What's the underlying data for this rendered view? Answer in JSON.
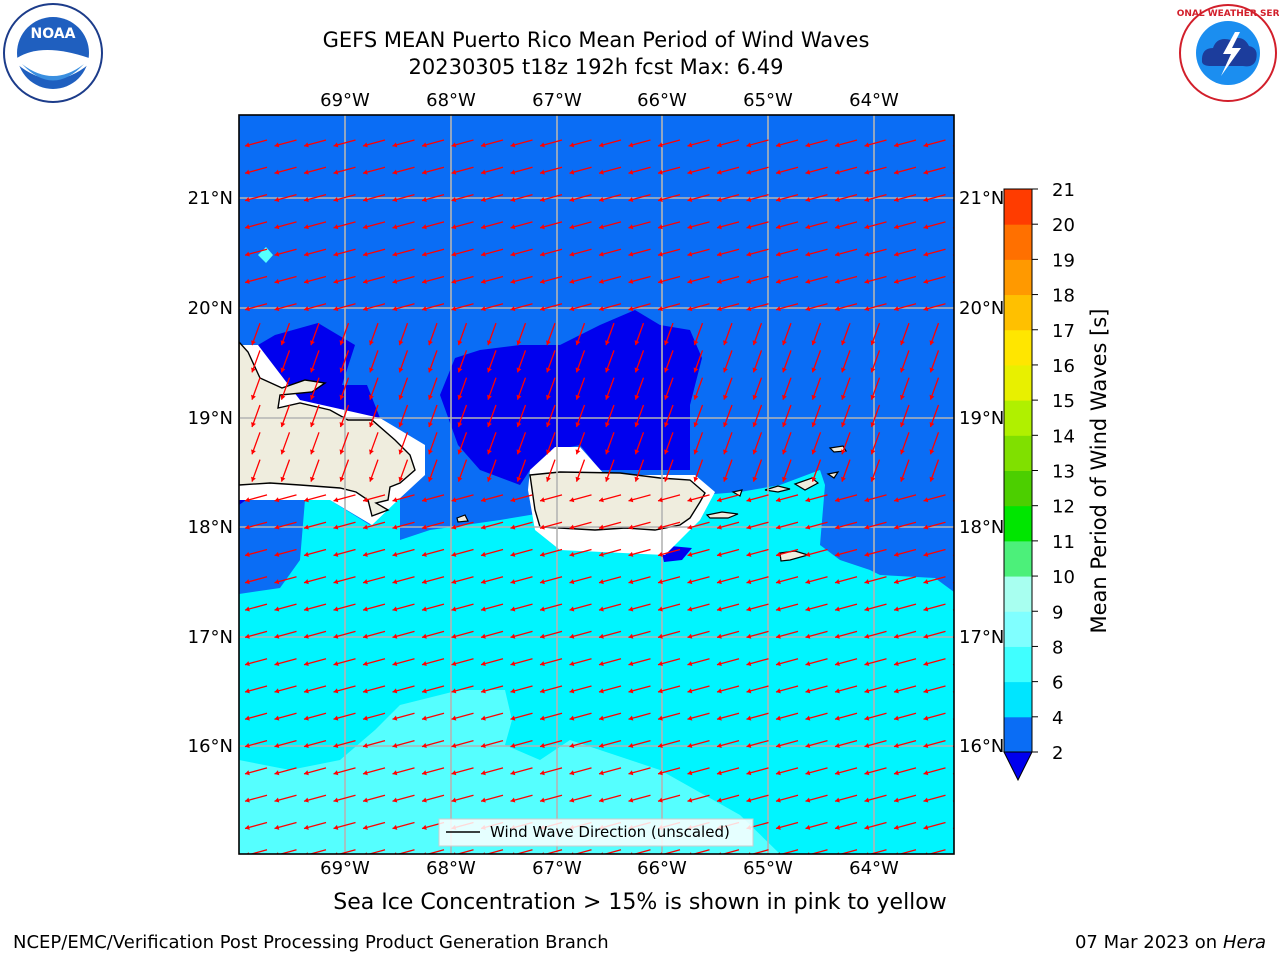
{
  "header": {
    "title_line1": "GEFS MEAN Puerto Rico Mean Period of Wind Waves",
    "title_line2": "20230305 t18z 192h fcst   Max: 6.49"
  },
  "logos": {
    "left": {
      "icon": "noaa-logo-icon",
      "text": "NOAA"
    },
    "right": {
      "icon": "nws-logo-icon",
      "ring_text": "NATIONAL WEATHER SERVICE"
    }
  },
  "map": {
    "lon_labels": [
      "69°W",
      "68°W",
      "67°W",
      "66°W",
      "65°W",
      "64°W"
    ],
    "lat_labels": [
      "21°N",
      "20°N",
      "19°N",
      "18°N",
      "17°N",
      "16°N"
    ],
    "legend_label": "Wind Wave Direction (unscaled)",
    "arrow_color": "#ff0000",
    "land_color": "#efedde"
  },
  "colorbar": {
    "label": "Mean Period of Wind Waves [s]",
    "ticks": [
      "2",
      "4",
      "6",
      "8",
      "9",
      "10",
      "11",
      "12",
      "13",
      "14",
      "15",
      "16",
      "17",
      "18",
      "19",
      "20",
      "21"
    ],
    "colors": [
      "#0a6df5",
      "#00e5ff",
      "#40ffff",
      "#80ffff",
      "#a8fff0",
      "#4cf07a",
      "#00e600",
      "#4ccf00",
      "#80e000",
      "#b0f000",
      "#e8f000",
      "#ffe600",
      "#ffc000",
      "#ff9900",
      "#ff7000",
      "#ff3c00",
      "#ff0000"
    ],
    "under_color": "#0000ee"
  },
  "footer": {
    "note": "Sea Ice Concentration > 15% is shown in pink to yellow",
    "left": "NCEP/EMC/Verification Post Processing Product Generation Branch",
    "date": "07 Mar 2023 on",
    "machine": "Hera"
  }
}
